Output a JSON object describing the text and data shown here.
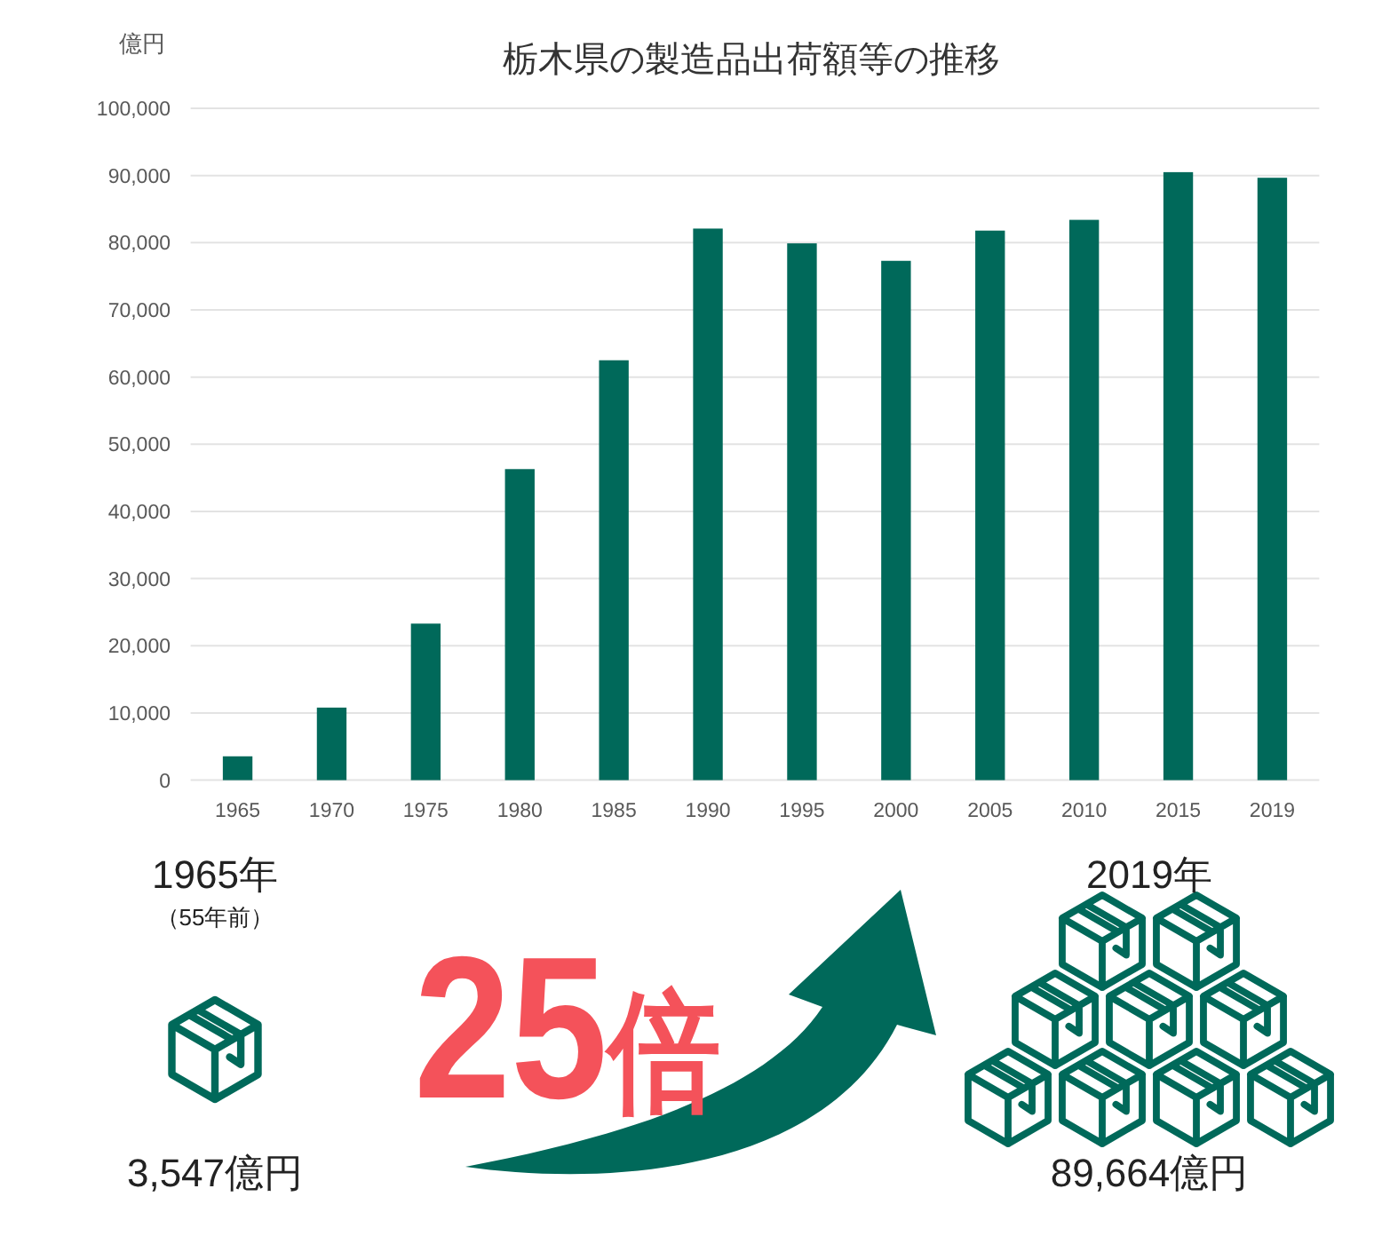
{
  "chart_data": {
    "type": "bar",
    "title": "栃木県の製造品出荷額等の推移",
    "ylabel": "億円",
    "categories": [
      "1965",
      "1970",
      "1975",
      "1980",
      "1985",
      "1990",
      "1995",
      "2000",
      "2005",
      "2010",
      "2015",
      "2019"
    ],
    "values": [
      3547,
      10800,
      23300,
      46300,
      62500,
      82100,
      79900,
      77300,
      81800,
      83400,
      90500,
      89664
    ],
    "color": "#00695a",
    "ylim": [
      0,
      100000
    ],
    "yticks": [
      0,
      {
        "value": 10000,
        "label": "10,000"
      },
      {
        "value": 20000,
        "label": "20,000"
      },
      {
        "value": 30000,
        "label": "30,000"
      },
      {
        "value": 40000,
        "label": "40,000"
      },
      {
        "value": 50000,
        "label": "50,000"
      },
      {
        "value": 60000,
        "label": "60,000"
      },
      {
        "value": 70000,
        "label": "70,000"
      },
      {
        "value": 80000,
        "label": "80,000"
      },
      {
        "value": 90000,
        "label": "90,000"
      },
      {
        "value": 100000,
        "label": "100,000"
      }
    ],
    "grid": "y",
    "annotations": [
      "1965年",
      "（55年前）",
      "3,547億円",
      "25倍",
      "2019年",
      "89,664億円"
    ]
  }
}
